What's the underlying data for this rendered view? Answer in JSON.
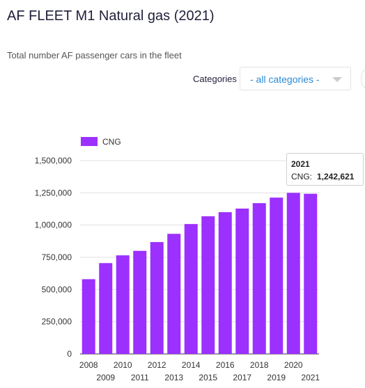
{
  "header": {
    "title": "AF FLEET M1 Natural gas (2021)",
    "subtitle": "Total number AF passenger cars in the fleet"
  },
  "filter": {
    "label": "Categories",
    "selected": "- all categories -"
  },
  "colors": {
    "bar": "#9b30ff",
    "title": "#1f1f3a",
    "link": "#2a8ad6"
  },
  "tooltip": {
    "year": "2021",
    "series": "CNG:",
    "value": "1,242,621"
  },
  "chart_data": {
    "type": "bar",
    "title": "AF FLEET M1 Natural gas (2021)",
    "subtitle": "Total number AF passenger cars in the fleet",
    "categories": [
      "2008",
      "2009",
      "2010",
      "2011",
      "2012",
      "2013",
      "2014",
      "2015",
      "2016",
      "2017",
      "2018",
      "2019",
      "2020",
      "2021"
    ],
    "series": [
      {
        "name": "CNG",
        "values": [
          580000,
          705000,
          765000,
          800000,
          868000,
          932000,
          1008000,
          1068000,
          1100000,
          1128000,
          1170000,
          1213000,
          1250000,
          1242621
        ]
      }
    ],
    "ylim": [
      0,
      1500000
    ],
    "yticks": [
      0,
      250000,
      500000,
      750000,
      1000000,
      1250000,
      1500000
    ],
    "ytick_labels": [
      "0",
      "250,000",
      "500,000",
      "750,000",
      "1,000,000",
      "1,250,000",
      "1,500,000"
    ],
    "grid": true,
    "legend": "top-left"
  }
}
